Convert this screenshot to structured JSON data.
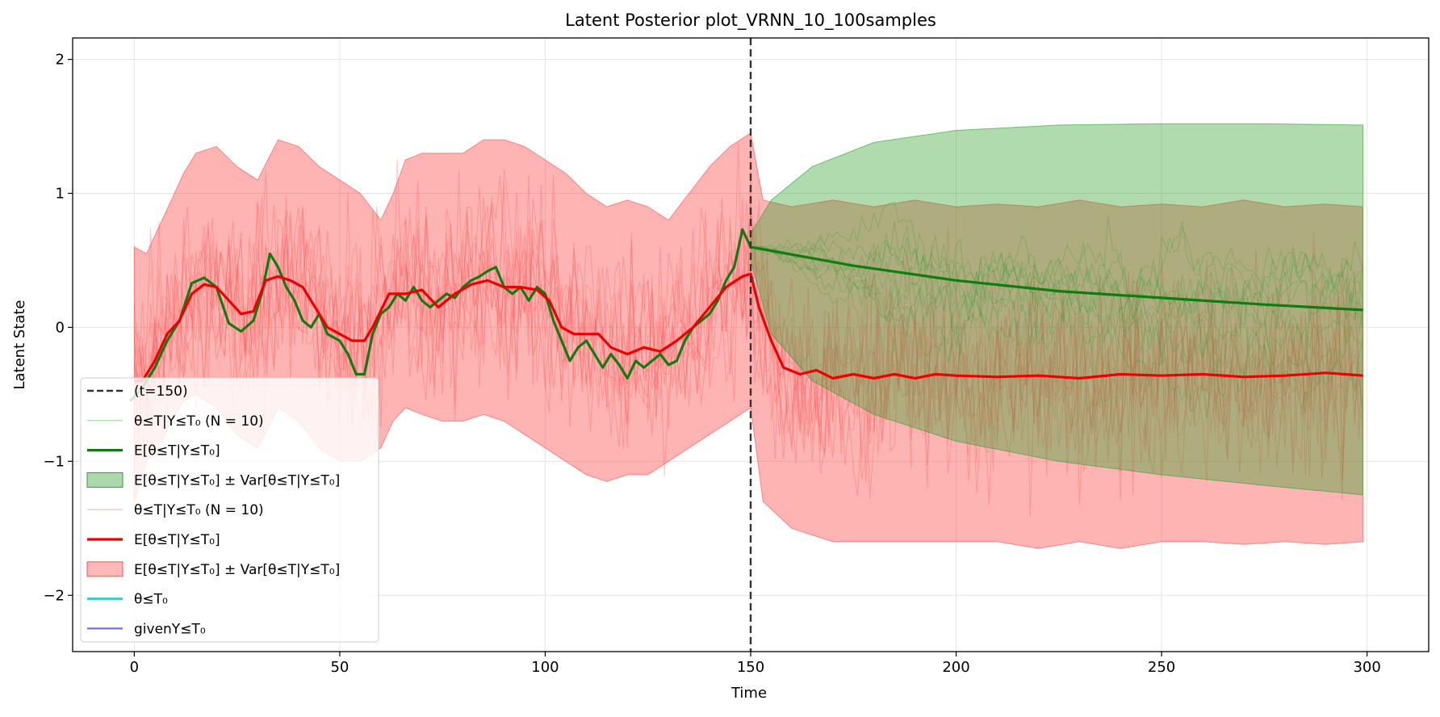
{
  "chart_data": {
    "type": "line",
    "title": "Latent Posterior plot_VRNN_10_100samples",
    "xlabel": "Time",
    "ylabel": "Latent State",
    "xlim": [
      -15,
      315
    ],
    "ylim": [
      -2.42,
      2.16
    ],
    "x_ticks": [
      0,
      50,
      100,
      150,
      200,
      250,
      300
    ],
    "y_ticks": [
      -2,
      -1,
      0,
      1,
      2
    ],
    "grid": true,
    "legend_position": "lower-left",
    "vline": {
      "x": 150,
      "label": "(t=150)",
      "color": "#333333",
      "style": "dashed"
    },
    "series": [
      {
        "name": "θ≤T|Y≤T₀ (N = 10)",
        "kind": "green-samples",
        "color": "#2ca02c",
        "count": 10,
        "x_range": [
          150,
          299
        ],
        "mean_points": [
          [
            150,
            0.6
          ],
          [
            175,
            0.46
          ],
          [
            200,
            0.35
          ],
          [
            225,
            0.27
          ],
          [
            250,
            0.22
          ],
          [
            275,
            0.17
          ],
          [
            299,
            0.13
          ]
        ],
        "spread": 0.55
      },
      {
        "name": "E[θ≤T|Y≤T₀]",
        "kind": "green-mean",
        "color": "#107c10",
        "points": [
          [
            -1,
            -0.55
          ],
          [
            2,
            -0.45
          ],
          [
            5,
            -0.3
          ],
          [
            8,
            -0.1
          ],
          [
            11,
            0.05
          ],
          [
            14,
            0.33
          ],
          [
            17,
            0.37
          ],
          [
            20,
            0.3
          ],
          [
            23,
            0.03
          ],
          [
            26,
            -0.03
          ],
          [
            29,
            0.05
          ],
          [
            31,
            0.25
          ],
          [
            33,
            0.55
          ],
          [
            35,
            0.45
          ],
          [
            37,
            0.3
          ],
          [
            39,
            0.2
          ],
          [
            41,
            0.05
          ],
          [
            43,
            0.0
          ],
          [
            45,
            0.1
          ],
          [
            47,
            -0.05
          ],
          [
            50,
            -0.1
          ],
          [
            52,
            -0.2
          ],
          [
            54,
            -0.35
          ],
          [
            56,
            -0.35
          ],
          [
            58,
            -0.05
          ],
          [
            60,
            0.1
          ],
          [
            62,
            0.15
          ],
          [
            64,
            0.25
          ],
          [
            66,
            0.2
          ],
          [
            68,
            0.3
          ],
          [
            70,
            0.2
          ],
          [
            72,
            0.15
          ],
          [
            74,
            0.2
          ],
          [
            76,
            0.25
          ],
          [
            78,
            0.22
          ],
          [
            80,
            0.3
          ],
          [
            82,
            0.35
          ],
          [
            84,
            0.38
          ],
          [
            86,
            0.42
          ],
          [
            88,
            0.45
          ],
          [
            90,
            0.3
          ],
          [
            92,
            0.25
          ],
          [
            94,
            0.3
          ],
          [
            96,
            0.2
          ],
          [
            98,
            0.3
          ],
          [
            100,
            0.25
          ],
          [
            102,
            0.05
          ],
          [
            104,
            -0.1
          ],
          [
            106,
            -0.25
          ],
          [
            108,
            -0.15
          ],
          [
            110,
            -0.1
          ],
          [
            112,
            -0.2
          ],
          [
            114,
            -0.3
          ],
          [
            116,
            -0.2
          ],
          [
            118,
            -0.28
          ],
          [
            120,
            -0.38
          ],
          [
            122,
            -0.25
          ],
          [
            124,
            -0.3
          ],
          [
            126,
            -0.25
          ],
          [
            128,
            -0.2
          ],
          [
            130,
            -0.28
          ],
          [
            132,
            -0.25
          ],
          [
            134,
            -0.1
          ],
          [
            136,
            0.0
          ],
          [
            138,
            0.05
          ],
          [
            140,
            0.1
          ],
          [
            142,
            0.2
          ],
          [
            144,
            0.35
          ],
          [
            146,
            0.45
          ],
          [
            148,
            0.73
          ],
          [
            150,
            0.6
          ],
          [
            175,
            0.46
          ],
          [
            200,
            0.35
          ],
          [
            225,
            0.27
          ],
          [
            250,
            0.22
          ],
          [
            275,
            0.17
          ],
          [
            299,
            0.13
          ]
        ]
      },
      {
        "name": "E[θ≤T|Y≤T₀] ± Var[θ≤T|Y≤T₀]",
        "kind": "green-band",
        "color": "#2ca02c",
        "upper": [
          [
            150,
            0.7
          ],
          [
            155,
            0.95
          ],
          [
            165,
            1.2
          ],
          [
            180,
            1.38
          ],
          [
            200,
            1.47
          ],
          [
            225,
            1.51
          ],
          [
            250,
            1.52
          ],
          [
            275,
            1.52
          ],
          [
            299,
            1.51
          ]
        ],
        "lower": [
          [
            150,
            0.5
          ],
          [
            155,
            -0.05
          ],
          [
            165,
            -0.4
          ],
          [
            180,
            -0.65
          ],
          [
            200,
            -0.85
          ],
          [
            225,
            -1.0
          ],
          [
            250,
            -1.1
          ],
          [
            275,
            -1.18
          ],
          [
            299,
            -1.25
          ]
        ]
      },
      {
        "name": "θ≤T|Y≤T₀ (N = 10)",
        "kind": "red-samples",
        "color": "#ff5050",
        "count": 10,
        "x_range": [
          0,
          299
        ],
        "spread": 0.9
      },
      {
        "name": "E[θ≤T|Y≤T₀]",
        "kind": "red-mean",
        "color": "#ee0000",
        "points": [
          [
            0,
            -0.4
          ],
          [
            2,
            -0.4
          ],
          [
            5,
            -0.25
          ],
          [
            8,
            -0.05
          ],
          [
            11,
            0.05
          ],
          [
            14,
            0.25
          ],
          [
            17,
            0.32
          ],
          [
            20,
            0.3
          ],
          [
            23,
            0.2
          ],
          [
            26,
            0.1
          ],
          [
            29,
            0.12
          ],
          [
            32,
            0.35
          ],
          [
            35,
            0.38
          ],
          [
            38,
            0.35
          ],
          [
            41,
            0.3
          ],
          [
            44,
            0.15
          ],
          [
            47,
            0.0
          ],
          [
            50,
            -0.05
          ],
          [
            53,
            -0.1
          ],
          [
            56,
            -0.1
          ],
          [
            58,
            0.0
          ],
          [
            62,
            0.25
          ],
          [
            66,
            0.25
          ],
          [
            70,
            0.28
          ],
          [
            74,
            0.15
          ],
          [
            78,
            0.25
          ],
          [
            82,
            0.32
          ],
          [
            86,
            0.35
          ],
          [
            90,
            0.3
          ],
          [
            94,
            0.3
          ],
          [
            98,
            0.28
          ],
          [
            101,
            0.2
          ],
          [
            104,
            0.0
          ],
          [
            107,
            -0.05
          ],
          [
            110,
            -0.05
          ],
          [
            113,
            -0.05
          ],
          [
            116,
            -0.15
          ],
          [
            120,
            -0.2
          ],
          [
            124,
            -0.15
          ],
          [
            128,
            -0.18
          ],
          [
            132,
            -0.1
          ],
          [
            136,
            0.0
          ],
          [
            140,
            0.15
          ],
          [
            144,
            0.3
          ],
          [
            148,
            0.38
          ],
          [
            150,
            0.4
          ],
          [
            152,
            0.15
          ],
          [
            155,
            -0.1
          ],
          [
            158,
            -0.3
          ],
          [
            162,
            -0.35
          ],
          [
            166,
            -0.32
          ],
          [
            170,
            -0.38
          ],
          [
            175,
            -0.35
          ],
          [
            180,
            -0.38
          ],
          [
            185,
            -0.35
          ],
          [
            190,
            -0.38
          ],
          [
            195,
            -0.35
          ],
          [
            200,
            -0.36
          ],
          [
            210,
            -0.37
          ],
          [
            220,
            -0.36
          ],
          [
            230,
            -0.38
          ],
          [
            240,
            -0.35
          ],
          [
            250,
            -0.36
          ],
          [
            260,
            -0.35
          ],
          [
            270,
            -0.37
          ],
          [
            280,
            -0.36
          ],
          [
            290,
            -0.34
          ],
          [
            299,
            -0.36
          ]
        ]
      },
      {
        "name": "E[θ≤T|Y≤T₀] ± Var[θ≤T|Y≤T₀]",
        "kind": "red-band",
        "color": "#ff4d4d",
        "upper": [
          [
            0,
            0.6
          ],
          [
            3,
            0.55
          ],
          [
            6,
            0.75
          ],
          [
            9,
            0.95
          ],
          [
            12,
            1.15
          ],
          [
            15,
            1.3
          ],
          [
            20,
            1.35
          ],
          [
            25,
            1.2
          ],
          [
            30,
            1.1
          ],
          [
            35,
            1.4
          ],
          [
            40,
            1.35
          ],
          [
            45,
            1.2
          ],
          [
            50,
            1.1
          ],
          [
            55,
            1.0
          ],
          [
            60,
            0.8
          ],
          [
            63,
            1.0
          ],
          [
            66,
            1.25
          ],
          [
            70,
            1.3
          ],
          [
            75,
            1.3
          ],
          [
            80,
            1.3
          ],
          [
            85,
            1.4
          ],
          [
            90,
            1.4
          ],
          [
            95,
            1.35
          ],
          [
            100,
            1.25
          ],
          [
            105,
            1.15
          ],
          [
            110,
            1.0
          ],
          [
            115,
            0.9
          ],
          [
            120,
            0.95
          ],
          [
            125,
            0.9
          ],
          [
            130,
            0.8
          ],
          [
            135,
            1.0
          ],
          [
            140,
            1.2
          ],
          [
            145,
            1.35
          ],
          [
            150,
            1.45
          ],
          [
            153,
            0.95
          ],
          [
            160,
            0.9
          ],
          [
            170,
            0.95
          ],
          [
            180,
            0.9
          ],
          [
            190,
            0.95
          ],
          [
            200,
            0.9
          ],
          [
            210,
            0.92
          ],
          [
            220,
            0.9
          ],
          [
            230,
            0.95
          ],
          [
            240,
            0.9
          ],
          [
            250,
            0.92
          ],
          [
            260,
            0.9
          ],
          [
            270,
            0.95
          ],
          [
            280,
            0.9
          ],
          [
            290,
            0.92
          ],
          [
            299,
            0.9
          ]
        ],
        "lower": [
          [
            0,
            -1.3
          ],
          [
            3,
            -1.0
          ],
          [
            6,
            -0.9
          ],
          [
            9,
            -0.7
          ],
          [
            12,
            -0.55
          ],
          [
            15,
            -0.5
          ],
          [
            20,
            -0.6
          ],
          [
            25,
            -0.8
          ],
          [
            30,
            -0.9
          ],
          [
            35,
            -0.6
          ],
          [
            40,
            -0.7
          ],
          [
            45,
            -0.9
          ],
          [
            50,
            -1.0
          ],
          [
            55,
            -1.0
          ],
          [
            60,
            -0.9
          ],
          [
            63,
            -0.7
          ],
          [
            66,
            -0.6
          ],
          [
            70,
            -0.65
          ],
          [
            75,
            -0.7
          ],
          [
            80,
            -0.7
          ],
          [
            85,
            -0.65
          ],
          [
            90,
            -0.7
          ],
          [
            95,
            -0.8
          ],
          [
            100,
            -0.9
          ],
          [
            105,
            -1.0
          ],
          [
            110,
            -1.1
          ],
          [
            115,
            -1.15
          ],
          [
            120,
            -1.1
          ],
          [
            125,
            -1.1
          ],
          [
            130,
            -1.0
          ],
          [
            135,
            -0.9
          ],
          [
            140,
            -0.8
          ],
          [
            145,
            -0.7
          ],
          [
            150,
            -0.6
          ],
          [
            153,
            -1.3
          ],
          [
            160,
            -1.5
          ],
          [
            170,
            -1.6
          ],
          [
            180,
            -1.6
          ],
          [
            190,
            -1.6
          ],
          [
            200,
            -1.6
          ],
          [
            210,
            -1.6
          ],
          [
            220,
            -1.65
          ],
          [
            230,
            -1.6
          ],
          [
            240,
            -1.65
          ],
          [
            250,
            -1.6
          ],
          [
            260,
            -1.6
          ],
          [
            270,
            -1.62
          ],
          [
            280,
            -1.6
          ],
          [
            290,
            -1.62
          ],
          [
            299,
            -1.6
          ]
        ]
      }
    ],
    "legend": [
      {
        "label": "(t=150)",
        "kind": "dashed",
        "color": "#333333"
      },
      {
        "label": "θ≤T|Y≤T₀ (N = 10)",
        "kind": "line-thin",
        "color": "#98d898"
      },
      {
        "label": "E[θ≤T|Y≤T₀]",
        "kind": "line-thick",
        "color": "#107c10"
      },
      {
        "label": "E[θ≤T|Y≤T₀] ± Var[θ≤T|Y≤T₀]",
        "kind": "patch",
        "color": "#2ca02c"
      },
      {
        "label": "θ≤T|Y≤T₀ (N = 10)",
        "kind": "line-thin",
        "color": "#ffb0b0"
      },
      {
        "label": "E[θ≤T|Y≤T₀]",
        "kind": "line-thick",
        "color": "#ee0000"
      },
      {
        "label": "E[θ≤T|Y≤T₀] ± Var[θ≤T|Y≤T₀]",
        "kind": "patch",
        "color": "#ff4d4d"
      },
      {
        "label": "θ≤T₀",
        "kind": "line-thick",
        "color": "#40d0d0"
      },
      {
        "label": "givenY≤T₀",
        "kind": "line-med",
        "color": "#7070f0"
      }
    ]
  }
}
